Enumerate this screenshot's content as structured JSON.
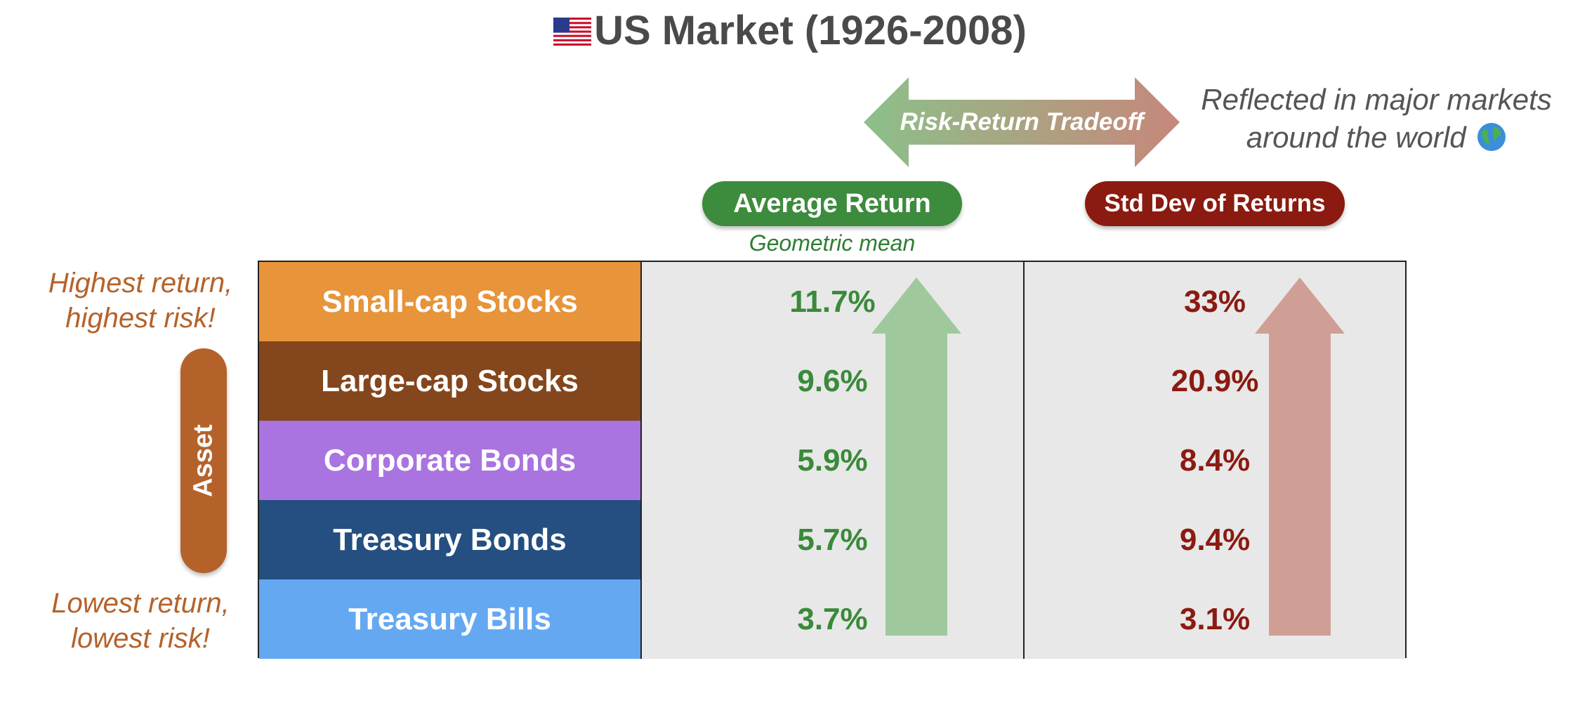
{
  "title": "US Market (1926-2008)",
  "title_icon": "us-flag-icon",
  "tradeoff_label": "Risk-Return Tradeoff",
  "global_note": {
    "line1": "Reflected in major markets",
    "line2": "around the world",
    "icon": "globe-icon"
  },
  "columns": {
    "avg_return": "Average Return",
    "avg_return_sub": "Geometric mean",
    "std_dev": "Std Dev of Returns"
  },
  "axis_label": "Asset",
  "notes": {
    "top_line1": "Highest return,",
    "top_line2": "highest risk!",
    "bottom_line1": "Lowest return,",
    "bottom_line2": "lowest risk!"
  },
  "rows": [
    {
      "asset": "Small-cap Stocks",
      "avg_return": "11.7%",
      "std_dev": "33%",
      "color": "#e8943a"
    },
    {
      "asset": "Large-cap Stocks",
      "avg_return": "9.6%",
      "std_dev": "20.9%",
      "color": "#84461c"
    },
    {
      "asset": "Corporate Bonds",
      "avg_return": "5.9%",
      "std_dev": "8.4%",
      "color": "#a973e0"
    },
    {
      "asset": "Treasury Bonds",
      "avg_return": "5.7%",
      "std_dev": "9.4%",
      "color": "#244f80"
    },
    {
      "asset": "Treasury Bills",
      "avg_return": "3.7%",
      "std_dev": "3.1%",
      "color": "#65a8f2"
    }
  ],
  "colors": {
    "return_green": "#3a8a3a",
    "risk_red": "#8b1a10",
    "note_orange": "#b5622a"
  }
}
